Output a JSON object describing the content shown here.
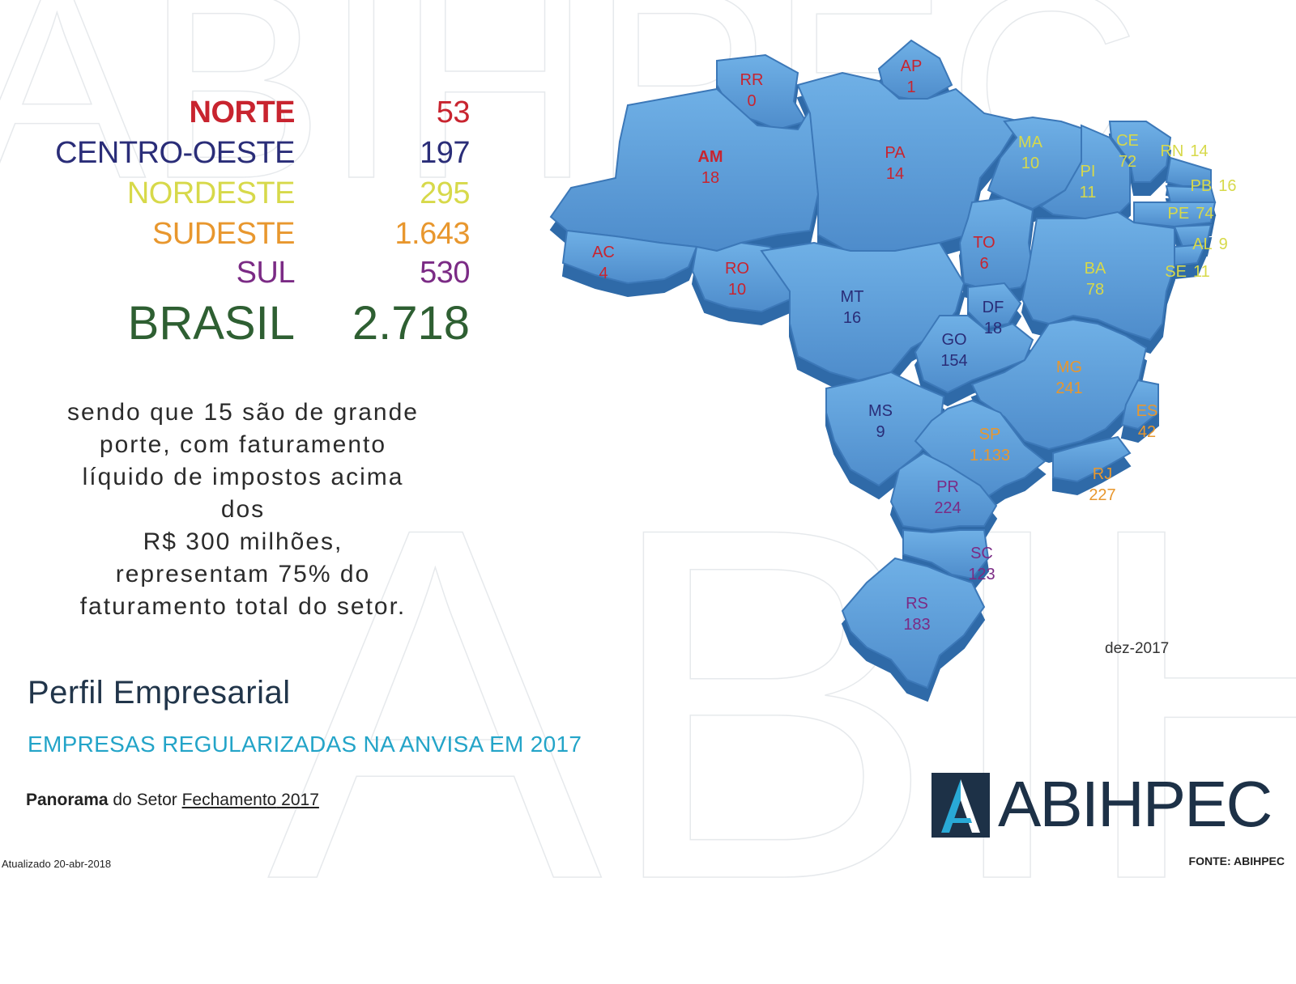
{
  "regions": [
    {
      "name": "NORTE",
      "value": "53",
      "color": "#c8242f"
    },
    {
      "name": "CENTRO-OESTE",
      "value": "197",
      "color": "#2a2d78"
    },
    {
      "name": "NORDESTE",
      "value": "295",
      "color": "#d7d94a"
    },
    {
      "name": "SUDESTE",
      "value": "1.643",
      "color": "#e8972e"
    },
    {
      "name": "SUL",
      "value": "530",
      "color": "#7b2b85"
    }
  ],
  "total": {
    "name": "BRASIL",
    "value": "2.718",
    "color": "#2e5f32"
  },
  "description": [
    "sendo que 15 são de grande",
    "porte, com faturamento",
    "líquido de impostos acima dos",
    "R$ 300 milhões,",
    "representam 75% do",
    "faturamento total do setor."
  ],
  "map": {
    "fill_color": "#5b9bd5",
    "states": [
      {
        "abbr": "RR",
        "value": "0",
        "region": "NORTE"
      },
      {
        "abbr": "AP",
        "value": "1",
        "region": "NORTE"
      },
      {
        "abbr": "AM",
        "value": "18",
        "region": "NORTE"
      },
      {
        "abbr": "PA",
        "value": "14",
        "region": "NORTE"
      },
      {
        "abbr": "AC",
        "value": "4",
        "region": "NORTE"
      },
      {
        "abbr": "RO",
        "value": "10",
        "region": "NORTE"
      },
      {
        "abbr": "TO",
        "value": "6",
        "region": "NORTE"
      },
      {
        "abbr": "MA",
        "value": "10",
        "region": "NORDESTE"
      },
      {
        "abbr": "PI",
        "value": "11",
        "region": "NORDESTE"
      },
      {
        "abbr": "CE",
        "value": "72",
        "region": "NORDESTE"
      },
      {
        "abbr": "RN",
        "value": "14",
        "region": "NORDESTE"
      },
      {
        "abbr": "PB",
        "value": "16",
        "region": "NORDESTE"
      },
      {
        "abbr": "PE",
        "value": "74",
        "region": "NORDESTE"
      },
      {
        "abbr": "AL",
        "value": "9",
        "region": "NORDESTE"
      },
      {
        "abbr": "SE",
        "value": "11",
        "region": "NORDESTE"
      },
      {
        "abbr": "BA",
        "value": "78",
        "region": "NORDESTE"
      },
      {
        "abbr": "MT",
        "value": "16",
        "region": "CENTRO-OESTE"
      },
      {
        "abbr": "DF",
        "value": "18",
        "region": "CENTRO-OESTE"
      },
      {
        "abbr": "GO",
        "value": "154",
        "region": "CENTRO-OESTE"
      },
      {
        "abbr": "MS",
        "value": "9",
        "region": "CENTRO-OESTE"
      },
      {
        "abbr": "MG",
        "value": "241",
        "region": "SUDESTE"
      },
      {
        "abbr": "ES",
        "value": "42",
        "region": "SUDESTE"
      },
      {
        "abbr": "SP",
        "value": "1.133",
        "region": "SUDESTE"
      },
      {
        "abbr": "RJ",
        "value": "227",
        "region": "SUDESTE"
      },
      {
        "abbr": "PR",
        "value": "224",
        "region": "SUL"
      },
      {
        "abbr": "SC",
        "value": "123",
        "region": "SUL"
      },
      {
        "abbr": "RS",
        "value": "183",
        "region": "SUL"
      }
    ]
  },
  "date_label": "dez-2017",
  "title": "Perfil Empresarial",
  "subtitle": "EMPRESAS REGULARIZADAS NA ANVISA EM 2017",
  "panorama": {
    "part1": "Panorama",
    "part2": " do Setor ",
    "part3": "Fechamento",
    "part4": " 2017"
  },
  "updated": "Atualizado 20-abr-2018",
  "source": "FONTE: ABIHPEC",
  "logo": {
    "text": "ABIHPEC",
    "colors": {
      "dark": "#1d3147",
      "light": "#29a9d6"
    }
  }
}
